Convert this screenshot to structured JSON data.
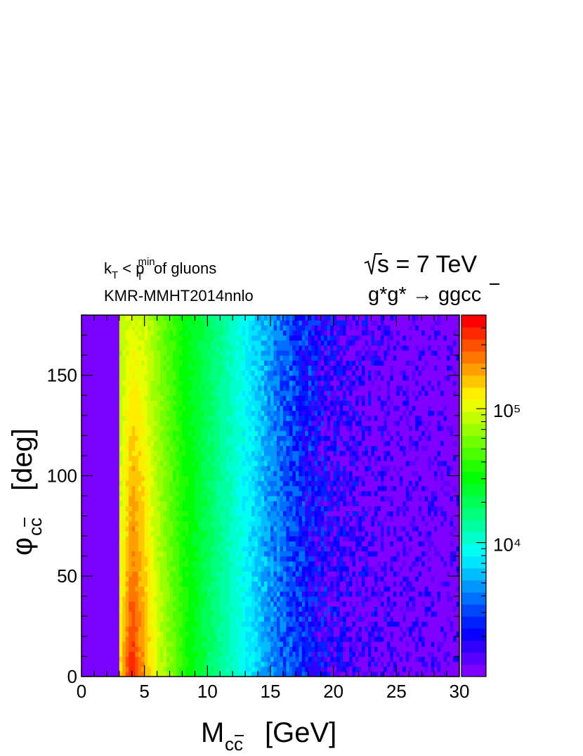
{
  "annotations": {
    "kt_k": "k",
    "kt_sub": "T",
    "kt_lt": " < p",
    "kt_sup": "min",
    "kt_sub2": "T",
    "kt_rest": " of gluons",
    "pdf_label": "KMR-MMHT2014nnlo",
    "energy_label": "s = 7 TeV",
    "process_prefix": "g*g* → ggc",
    "process_cbar": "c"
  },
  "axes": {
    "x_title_main": "M",
    "x_title_sub_c": "c",
    "x_title_sub_cbar": "c",
    "x_title_unit": "[GeV]",
    "y_title_main": "φ",
    "y_title_sub_c": "c",
    "y_title_sub_cbar": "c",
    "y_title_unit": "[deg]"
  },
  "chart_data": {
    "type": "heatmap",
    "title": "",
    "xlabel": "M_{cc̄} [GeV]",
    "ylabel": "φ_{cc̄} [deg]",
    "xlim": [
      0,
      30
    ],
    "ylim": [
      0,
      180
    ],
    "x_ticks": [
      "0",
      "5",
      "10",
      "15",
      "20",
      "25",
      "30"
    ],
    "x_tick_values": [
      0,
      5,
      10,
      15,
      20,
      25,
      30
    ],
    "y_ticks": [
      "0",
      "50",
      "100",
      "150"
    ],
    "y_tick_values": [
      0,
      50,
      100,
      150
    ],
    "z_scale": "log",
    "z_range": [
      1000,
      500000
    ],
    "z_ticks": [
      "10⁴",
      "10⁵"
    ],
    "z_tick_values": [
      10000,
      100000
    ],
    "palette": "rainbow (violet → blue → cyan → green → yellow → orange → red)",
    "contour_levels": 30,
    "empty_region_x": [
      0,
      3
    ],
    "threshold_x": 3,
    "peak_x": 3.6,
    "peak_region_y": [
      0,
      40
    ],
    "profile_M": [
      3.2,
      4,
      5,
      6,
      8,
      10,
      12,
      14,
      16,
      18,
      20,
      22,
      25,
      28,
      30
    ],
    "profile_log10z_at_phi0": [
      5.1,
      5.55,
      5.3,
      5.0,
      4.6,
      4.3,
      4.05,
      3.8,
      3.55,
      3.35,
      3.2,
      3.1,
      2.95,
      2.85,
      2.8
    ],
    "profile_log10z_at_phi180": [
      4.9,
      5.0,
      4.95,
      4.8,
      4.5,
      4.3,
      4.05,
      3.8,
      3.55,
      3.35,
      3.2,
      3.1,
      2.95,
      2.85,
      2.8
    ],
    "grid": false
  }
}
